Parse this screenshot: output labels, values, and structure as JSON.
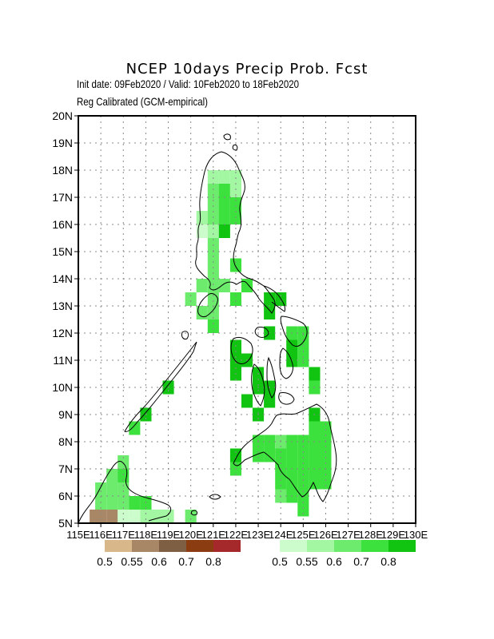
{
  "title": "NCEP 10days Precip Prob. Fcst",
  "subtitle_line1": "Init date: 09Feb2020 / Valid: 10Feb2020 to 18Feb2020",
  "subtitle_line2": "Reg Calibrated (GCM-empirical)",
  "map": {
    "lon_range": [
      115,
      130
    ],
    "lat_range": [
      5,
      20
    ],
    "lon_ticks": [
      "115E",
      "116E",
      "117E",
      "118E",
      "119E",
      "120E",
      "121E",
      "122E",
      "123E",
      "124E",
      "125E",
      "126E",
      "127E",
      "128E",
      "129E",
      "130E"
    ],
    "lat_ticks": [
      "5N",
      "6N",
      "7N",
      "8N",
      "9N",
      "10N",
      "11N",
      "12N",
      "13N",
      "14N",
      "15N",
      "16N",
      "17N",
      "18N",
      "19N",
      "20N"
    ],
    "grid": "dotted",
    "cell_size_deg": 0.5
  },
  "legend": {
    "dry": {
      "colors": [
        "#d8b78a",
        "#a88766",
        "#7f5f43",
        "#8b3c11",
        "#a5282b"
      ],
      "labels": [
        "0.5",
        "0.55",
        "0.6",
        "0.7",
        "0.8"
      ]
    },
    "wet": {
      "colors": [
        "#ccfccc",
        "#a3f7a3",
        "#6ceb6c",
        "#3de13d",
        "#12c412"
      ],
      "labels": [
        "0.5",
        "0.55",
        "0.6",
        "0.7",
        "0.8"
      ]
    }
  },
  "cells": [
    {
      "lon": 116.0,
      "lat": 5.25,
      "cls": "dry1"
    },
    {
      "lon": 115.75,
      "lat": 5.25,
      "cls": "dry1"
    },
    {
      "lon": 116.5,
      "lat": 5.25,
      "cls": "dry1"
    },
    {
      "lon": 116.0,
      "lat": 5.75,
      "cls": "w3"
    },
    {
      "lon": 116.5,
      "lat": 5.75,
      "cls": "w3"
    },
    {
      "lon": 117.0,
      "lat": 5.75,
      "cls": "w3"
    },
    {
      "lon": 117.5,
      "lat": 5.75,
      "cls": "w4"
    },
    {
      "lon": 118.0,
      "lat": 5.75,
      "cls": "w4"
    },
    {
      "lon": 116.0,
      "lat": 6.25,
      "cls": "w3"
    },
    {
      "lon": 116.5,
      "lat": 6.25,
      "cls": "w3"
    },
    {
      "lon": 117.0,
      "lat": 6.25,
      "cls": "w3"
    },
    {
      "lon": 116.5,
      "lat": 6.75,
      "cls": "w3"
    },
    {
      "lon": 117.0,
      "lat": 6.75,
      "cls": "w4"
    },
    {
      "lon": 117.0,
      "lat": 7.25,
      "cls": "w3"
    },
    {
      "lon": 117.0,
      "lat": 5.25,
      "cls": "w1"
    },
    {
      "lon": 117.5,
      "lat": 5.25,
      "cls": "w1"
    },
    {
      "lon": 118.0,
      "lat": 5.25,
      "cls": "w2"
    },
    {
      "lon": 118.5,
      "lat": 5.25,
      "cls": "w2"
    },
    {
      "lon": 119.0,
      "lat": 5.25,
      "cls": "w2"
    },
    {
      "lon": 120.0,
      "lat": 5.25,
      "cls": "w3"
    },
    {
      "lon": 117.5,
      "lat": 8.5,
      "cls": "w4"
    },
    {
      "lon": 118.0,
      "lat": 9.0,
      "cls": "w5"
    },
    {
      "lon": 119.0,
      "lat": 10.0,
      "cls": "w5"
    },
    {
      "lon": 121.0,
      "lat": 17.75,
      "cls": "w2"
    },
    {
      "lon": 121.5,
      "lat": 17.75,
      "cls": "w2"
    },
    {
      "lon": 122.0,
      "lat": 17.75,
      "cls": "w2"
    },
    {
      "lon": 121.0,
      "lat": 17.25,
      "cls": "w3"
    },
    {
      "lon": 121.5,
      "lat": 17.25,
      "cls": "w4"
    },
    {
      "lon": 122.0,
      "lat": 17.25,
      "cls": "w2"
    },
    {
      "lon": 121.0,
      "lat": 16.75,
      "cls": "w3"
    },
    {
      "lon": 121.5,
      "lat": 16.75,
      "cls": "w4"
    },
    {
      "lon": 122.0,
      "lat": 16.75,
      "cls": "w4"
    },
    {
      "lon": 120.5,
      "lat": 16.25,
      "cls": "w2"
    },
    {
      "lon": 121.0,
      "lat": 16.25,
      "cls": "w3"
    },
    {
      "lon": 121.5,
      "lat": 16.25,
      "cls": "w4"
    },
    {
      "lon": 122.0,
      "lat": 16.25,
      "cls": "w4"
    },
    {
      "lon": 120.5,
      "lat": 15.75,
      "cls": "w1"
    },
    {
      "lon": 121.0,
      "lat": 15.75,
      "cls": "w2"
    },
    {
      "lon": 121.5,
      "lat": 15.75,
      "cls": "w5"
    },
    {
      "lon": 121.0,
      "lat": 15.25,
      "cls": "w3"
    },
    {
      "lon": 121.0,
      "lat": 14.75,
      "cls": "w3"
    },
    {
      "lon": 121.0,
      "lat": 14.25,
      "cls": "w3"
    },
    {
      "lon": 122.0,
      "lat": 14.5,
      "cls": "w4"
    },
    {
      "lon": 120.5,
      "lat": 13.75,
      "cls": "w3"
    },
    {
      "lon": 121.0,
      "lat": 13.75,
      "cls": "w3"
    },
    {
      "lon": 121.5,
      "lat": 13.75,
      "cls": "w3"
    },
    {
      "lon": 122.5,
      "lat": 13.75,
      "cls": "w4"
    },
    {
      "lon": 120.0,
      "lat": 13.25,
      "cls": "w3"
    },
    {
      "lon": 121.0,
      "lat": 13.25,
      "cls": "w3"
    },
    {
      "lon": 122.0,
      "lat": 13.25,
      "cls": "w4"
    },
    {
      "lon": 123.5,
      "lat": 13.25,
      "cls": "w5"
    },
    {
      "lon": 124.0,
      "lat": 13.25,
      "cls": "w5"
    },
    {
      "lon": 120.5,
      "lat": 12.75,
      "cls": "w3"
    },
    {
      "lon": 121.0,
      "lat": 12.75,
      "cls": "w3"
    },
    {
      "lon": 123.5,
      "lat": 12.75,
      "cls": "w5"
    },
    {
      "lon": 121.0,
      "lat": 12.25,
      "cls": "w4"
    },
    {
      "lon": 123.5,
      "lat": 12.0,
      "cls": "w5"
    },
    {
      "lon": 124.5,
      "lat": 12.0,
      "cls": "w4"
    },
    {
      "lon": 125.0,
      "lat": 12.0,
      "cls": "w4"
    },
    {
      "lon": 122.0,
      "lat": 11.5,
      "cls": "w5"
    },
    {
      "lon": 124.5,
      "lat": 11.5,
      "cls": "w5"
    },
    {
      "lon": 125.0,
      "lat": 11.5,
      "cls": "w4"
    },
    {
      "lon": 122.0,
      "lat": 11.0,
      "cls": "w5"
    },
    {
      "lon": 122.5,
      "lat": 11.0,
      "cls": "w5"
    },
    {
      "lon": 124.5,
      "lat": 11.0,
      "cls": "w5"
    },
    {
      "lon": 125.0,
      "lat": 11.0,
      "cls": "w4"
    },
    {
      "lon": 122.0,
      "lat": 10.5,
      "cls": "w5"
    },
    {
      "lon": 123.0,
      "lat": 10.5,
      "cls": "w5"
    },
    {
      "lon": 125.5,
      "lat": 10.5,
      "cls": "w5"
    },
    {
      "lon": 123.0,
      "lat": 10.0,
      "cls": "w5"
    },
    {
      "lon": 123.5,
      "lat": 10.0,
      "cls": "w5"
    },
    {
      "lon": 125.5,
      "lat": 10.0,
      "cls": "w4"
    },
    {
      "lon": 122.5,
      "lat": 9.5,
      "cls": "w5"
    },
    {
      "lon": 123.5,
      "lat": 9.5,
      "cls": "w5"
    },
    {
      "lon": 123.0,
      "lat": 9.0,
      "cls": "w5"
    },
    {
      "lon": 125.5,
      "lat": 9.0,
      "cls": "w5"
    },
    {
      "lon": 123.0,
      "lat": 8.0,
      "cls": "w4"
    },
    {
      "lon": 123.5,
      "lat": 8.0,
      "cls": "w4"
    },
    {
      "lon": 124.0,
      "lat": 8.0,
      "cls": "w3"
    },
    {
      "lon": 124.5,
      "lat": 8.0,
      "cls": "w4"
    },
    {
      "lon": 125.0,
      "lat": 8.0,
      "cls": "w4"
    },
    {
      "lon": 125.5,
      "lat": 8.0,
      "cls": "w4"
    },
    {
      "lon": 126.0,
      "lat": 8.0,
      "cls": "w4"
    },
    {
      "lon": 125.5,
      "lat": 8.5,
      "cls": "w4"
    },
    {
      "lon": 126.0,
      "lat": 8.5,
      "cls": "w4"
    },
    {
      "lon": 122.0,
      "lat": 7.5,
      "cls": "w5"
    },
    {
      "lon": 123.0,
      "lat": 7.5,
      "cls": "w4"
    },
    {
      "lon": 123.5,
      "lat": 7.5,
      "cls": "w4"
    },
    {
      "lon": 124.0,
      "lat": 7.5,
      "cls": "w4"
    },
    {
      "lon": 124.5,
      "lat": 7.5,
      "cls": "w4"
    },
    {
      "lon": 125.0,
      "lat": 7.5,
      "cls": "w4"
    },
    {
      "lon": 125.5,
      "lat": 7.5,
      "cls": "w4"
    },
    {
      "lon": 126.0,
      "lat": 7.5,
      "cls": "w4"
    },
    {
      "lon": 122.0,
      "lat": 7.0,
      "cls": "w4"
    },
    {
      "lon": 124.0,
      "lat": 7.0,
      "cls": "w4"
    },
    {
      "lon": 124.5,
      "lat": 7.0,
      "cls": "w4"
    },
    {
      "lon": 125.0,
      "lat": 7.0,
      "cls": "w4"
    },
    {
      "lon": 125.5,
      "lat": 7.0,
      "cls": "w4"
    },
    {
      "lon": 126.0,
      "lat": 7.0,
      "cls": "w4"
    },
    {
      "lon": 124.0,
      "lat": 6.5,
      "cls": "w4"
    },
    {
      "lon": 124.5,
      "lat": 6.5,
      "cls": "w4"
    },
    {
      "lon": 125.0,
      "lat": 6.5,
      "cls": "w4"
    },
    {
      "lon": 125.5,
      "lat": 6.5,
      "cls": "w4"
    },
    {
      "lon": 126.0,
      "lat": 6.5,
      "cls": "w4"
    },
    {
      "lon": 124.0,
      "lat": 6.0,
      "cls": "w3"
    },
    {
      "lon": 124.5,
      "lat": 6.0,
      "cls": "w4"
    },
    {
      "lon": 125.0,
      "lat": 6.0,
      "cls": "w4"
    },
    {
      "lon": 125.0,
      "lat": 5.5,
      "cls": "w4"
    }
  ]
}
